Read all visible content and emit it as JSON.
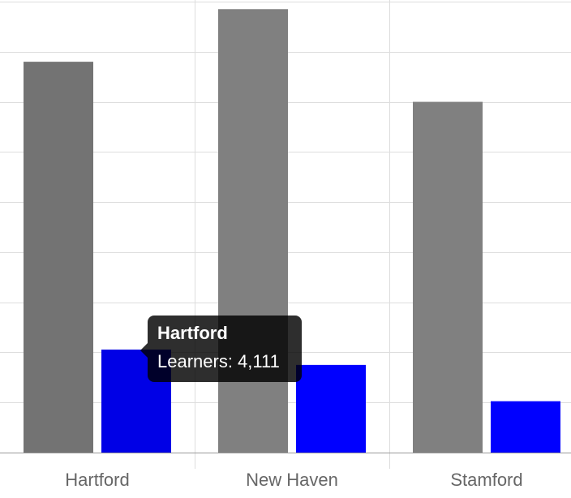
{
  "chart_data": {
    "type": "bar",
    "categories": [
      "Hartford",
      "New Haven",
      "Stamford"
    ],
    "series": [
      {
        "color": "#808080",
        "values": [
          15600,
          17700,
          14000
        ]
      },
      {
        "name": "Learners",
        "color": "#0000ff",
        "values": [
          4111,
          3500,
          2050
        ]
      }
    ],
    "ylim": [
      0,
      18000
    ],
    "grid": true,
    "legend": "none"
  },
  "tooltip": {
    "title": "Hartford",
    "body": "Learners: 4,111"
  }
}
